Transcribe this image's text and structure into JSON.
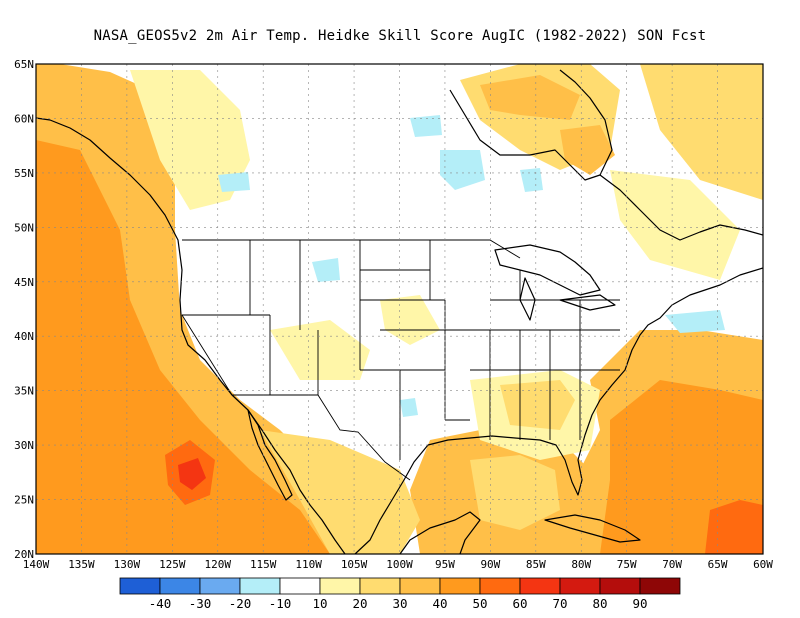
{
  "title": "NASA_GEOS5v2  2m Air Temp. Heidke Skill Score AugIC (1982-2022) SON Fcst",
  "lat_labels": [
    "65N",
    "60N",
    "55N",
    "50N",
    "45N",
    "40N",
    "35N",
    "30N",
    "25N",
    "20N"
  ],
  "lon_labels": [
    "140W",
    "135W",
    "130W",
    "125W",
    "120W",
    "115W",
    "110W",
    "105W",
    "100W",
    "95W",
    "90W",
    "85W",
    "80W",
    "75W",
    "70W",
    "65W",
    "60W"
  ],
  "colorbar": {
    "colors": [
      "#1e5fd6",
      "#3c86e6",
      "#6aaaf0",
      "#b4eef8",
      "#ffffff",
      "#fff6a8",
      "#ffdc70",
      "#ffbf48",
      "#ff9a1e",
      "#ff6a10",
      "#f43512",
      "#d41a10",
      "#b40d0c",
      "#8e0606"
    ],
    "labels": [
      "-40",
      "-30",
      "-20",
      "-10",
      "10",
      "20",
      "30",
      "40",
      "50",
      "60",
      "70",
      "80",
      "90"
    ]
  },
  "map_colors": {
    "ocean_skill": "#ffbf48",
    "high_skill": "#ff9a1e",
    "very_high_skill": "#ff6a10",
    "peak_skill": "#f43512",
    "low_skill": "#ffdc70",
    "weak_skill": "#fff6a8",
    "negative_skill": "#b4eef8",
    "outlines": "#000000",
    "gridlines": "#888888"
  }
}
